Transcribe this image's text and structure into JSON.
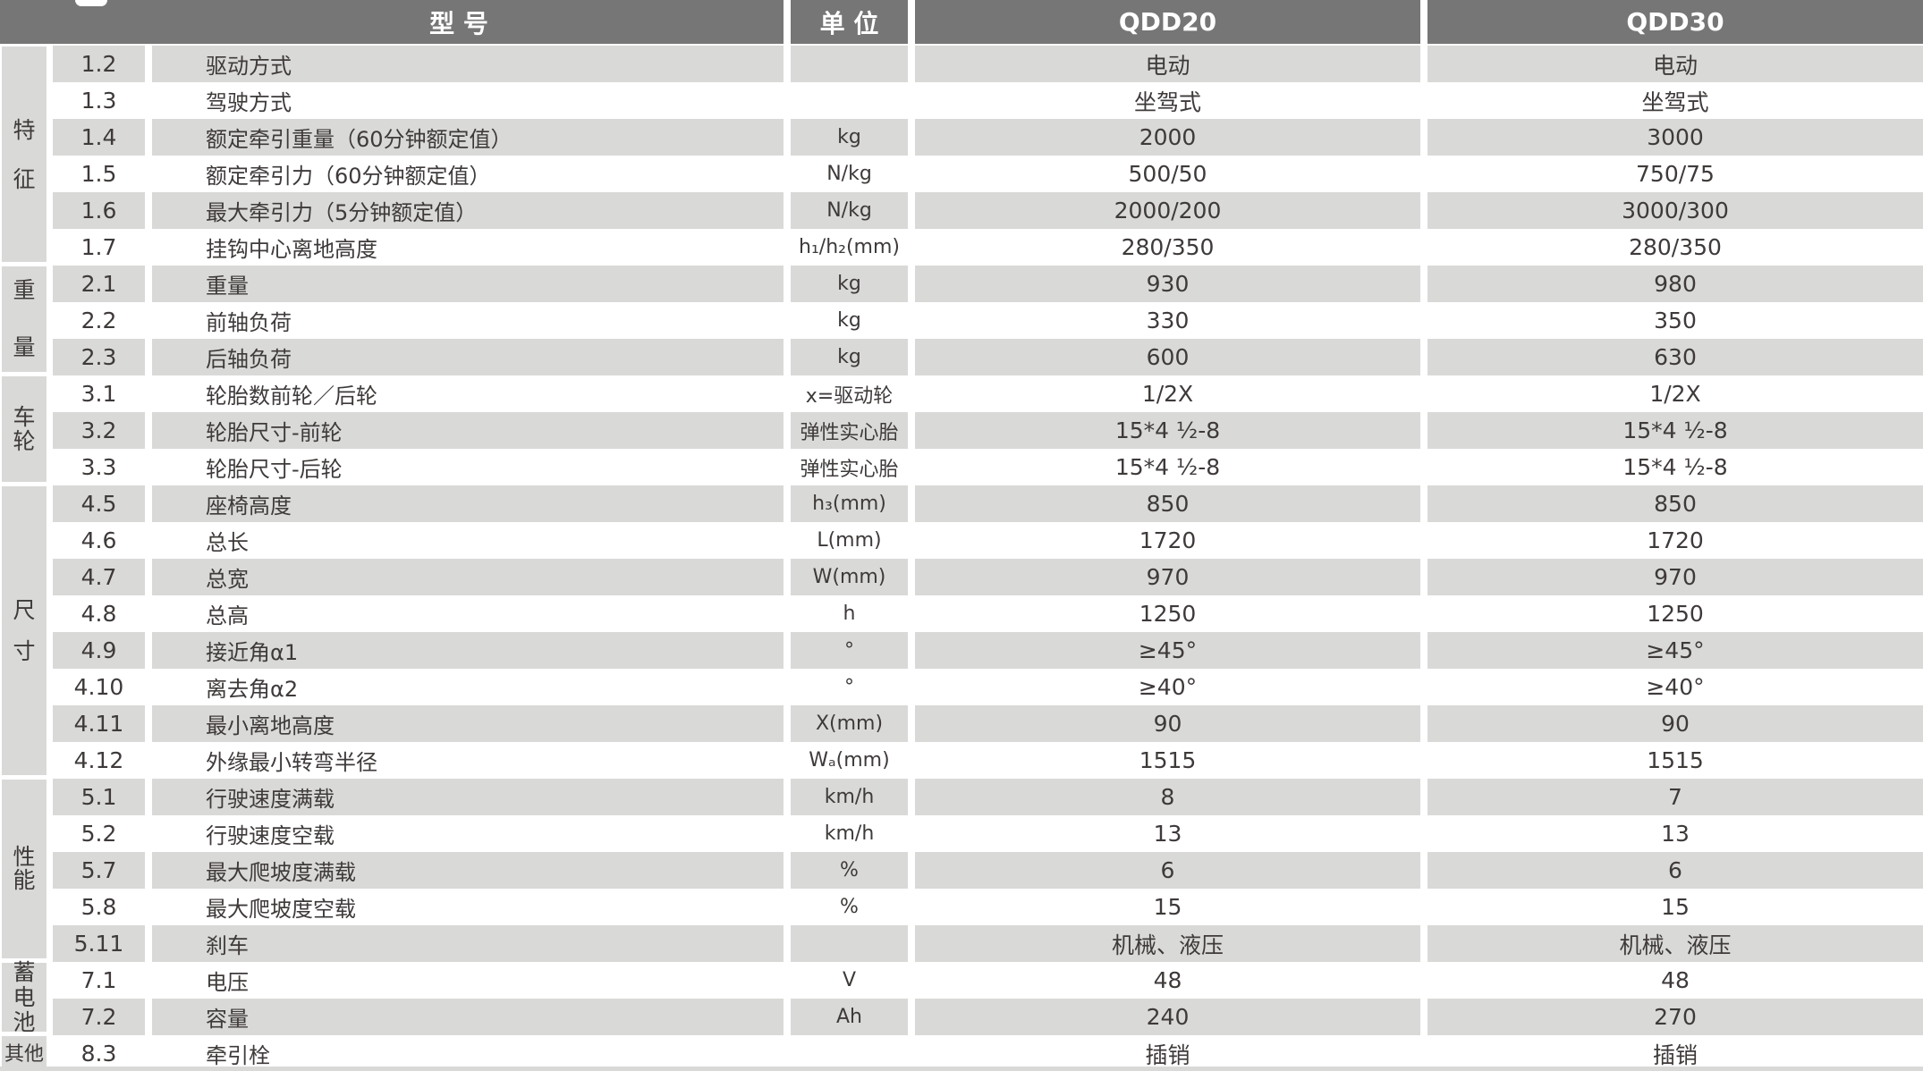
{
  "header": {
    "model_label": "型 号",
    "unit_label": "单 位",
    "model_columns": [
      "QDD20",
      "QDD30"
    ]
  },
  "categories": [
    {
      "label": "特征",
      "rows": 6
    },
    {
      "label": "重量",
      "rows": 3
    },
    {
      "label": "车轮",
      "rows": 3
    },
    {
      "label": "尺寸",
      "rows": 8
    },
    {
      "label": "性能",
      "rows": 5
    },
    {
      "label": "蓄电池",
      "rows": 2
    },
    {
      "label": "其他",
      "rows": 1
    }
  ],
  "rows": [
    {
      "no": "1.2",
      "name": "驱动方式",
      "unit": "",
      "qdd20": "电动",
      "qdd30": "电动"
    },
    {
      "no": "1.3",
      "name": "驾驶方式",
      "unit": "",
      "qdd20": "坐驾式",
      "qdd30": "坐驾式"
    },
    {
      "no": "1.4",
      "name": "额定牵引重量（60分钟额定值）",
      "unit": "kg",
      "qdd20": "2000",
      "qdd30": "3000"
    },
    {
      "no": "1.5",
      "name": "额定牵引力（60分钟额定值）",
      "unit": "N/kg",
      "qdd20": "500/50",
      "qdd30": "750/75"
    },
    {
      "no": "1.6",
      "name": "最大牵引力（5分钟额定值）",
      "unit": "N/kg",
      "qdd20": "2000/200",
      "qdd30": "3000/300"
    },
    {
      "no": "1.7",
      "name": "挂钩中心离地高度",
      "unit": "h₁/h₂(mm)",
      "qdd20": "280/350",
      "qdd30": "280/350"
    },
    {
      "no": "2.1",
      "name": "重量",
      "unit": "kg",
      "qdd20": "930",
      "qdd30": "980"
    },
    {
      "no": "2.2",
      "name": "前轴负荷",
      "unit": "kg",
      "qdd20": "330",
      "qdd30": "350"
    },
    {
      "no": "2.3",
      "name": "后轴负荷",
      "unit": "kg",
      "qdd20": "600",
      "qdd30": "630"
    },
    {
      "no": "3.1",
      "name": "轮胎数前轮／后轮",
      "unit": "x=驱动轮",
      "qdd20": "1/2X",
      "qdd30": "1/2X"
    },
    {
      "no": "3.2",
      "name": "轮胎尺寸-前轮",
      "unit": "弹性实心胎",
      "qdd20": "15*4 ½-8",
      "qdd30": "15*4 ½-8"
    },
    {
      "no": "3.3",
      "name": "轮胎尺寸-后轮",
      "unit": "弹性实心胎",
      "qdd20": "15*4 ½-8",
      "qdd30": "15*4 ½-8"
    },
    {
      "no": "4.5",
      "name": "座椅高度",
      "unit": "h₃(mm)",
      "qdd20": "850",
      "qdd30": "850"
    },
    {
      "no": "4.6",
      "name": "总长",
      "unit": "L(mm)",
      "qdd20": "1720",
      "qdd30": "1720"
    },
    {
      "no": "4.7",
      "name": "总宽",
      "unit": "W(mm)",
      "qdd20": "970",
      "qdd30": "970"
    },
    {
      "no": "4.8",
      "name": "总高",
      "unit": "h",
      "qdd20": "1250",
      "qdd30": "1250"
    },
    {
      "no": "4.9",
      "name": "接近角α1",
      "unit": "°",
      "qdd20": "≥45°",
      "qdd30": "≥45°"
    },
    {
      "no": "4.10",
      "name": "离去角α2",
      "unit": "°",
      "qdd20": "≥40°",
      "qdd30": "≥40°"
    },
    {
      "no": "4.11",
      "name": "最小离地高度",
      "unit": "X(mm)",
      "qdd20": "90",
      "qdd30": "90"
    },
    {
      "no": "4.12",
      "name": "外缘最小转弯半径",
      "unit": "Wₐ(mm)",
      "qdd20": "1515",
      "qdd30": "1515"
    },
    {
      "no": "5.1",
      "name": "行驶速度满载",
      "unit": "km/h",
      "qdd20": "8",
      "qdd30": "7"
    },
    {
      "no": "5.2",
      "name": "行驶速度空载",
      "unit": "km/h",
      "qdd20": "13",
      "qdd30": "13"
    },
    {
      "no": "5.7",
      "name": "最大爬坡度满载",
      "unit": "%",
      "qdd20": "6",
      "qdd30": "6"
    },
    {
      "no": "5.8",
      "name": "最大爬坡度空载",
      "unit": "%",
      "qdd20": "15",
      "qdd30": "15"
    },
    {
      "no": "5.11",
      "name": "刹车",
      "unit": "",
      "qdd20": "机械、液压",
      "qdd30": "机械、液压"
    },
    {
      "no": "7.1",
      "name": "电压",
      "unit": "V",
      "qdd20": "48",
      "qdd30": "48"
    },
    {
      "no": "7.2",
      "name": "容量",
      "unit": "Ah",
      "qdd20": "240",
      "qdd30": "270"
    },
    {
      "no": "8.3",
      "name": "牵引栓",
      "unit": "",
      "qdd20": "插销",
      "qdd30": "插销"
    }
  ],
  "colors": {
    "header_bg": "#767676",
    "header_text": "#ffffff",
    "stripe": "#d9d9d8",
    "text": "#3e3a39"
  }
}
